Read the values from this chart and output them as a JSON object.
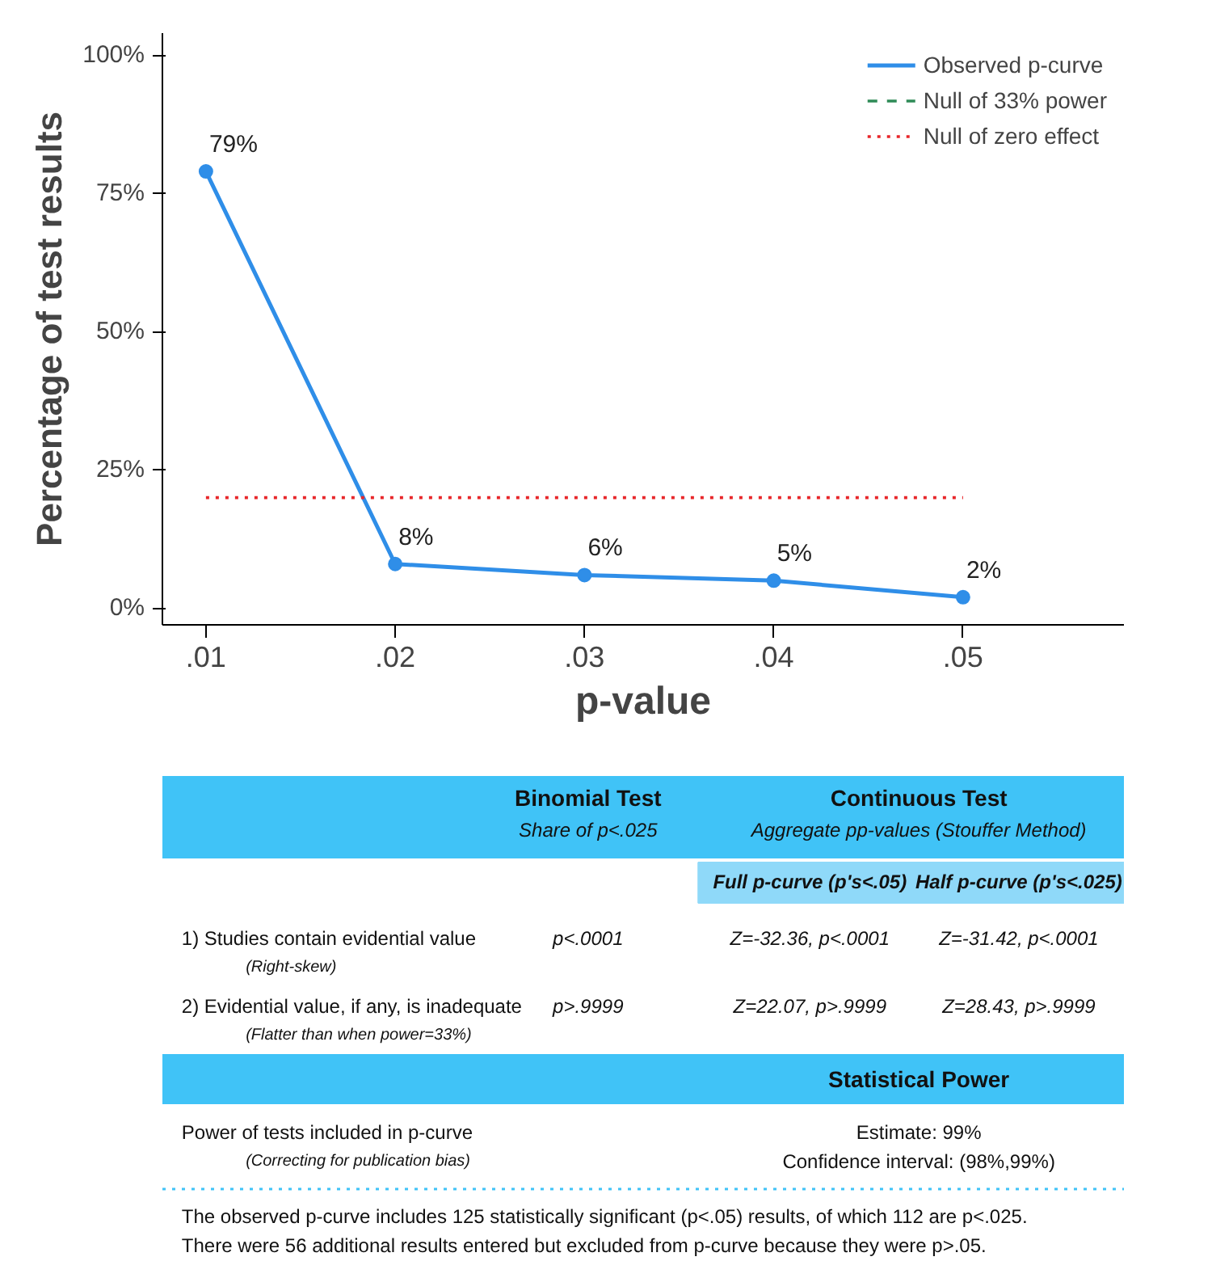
{
  "chart_data": {
    "type": "line",
    "xlabel": "p-value",
    "ylabel": "Percentage of test results",
    "x": [
      0.01,
      0.02,
      0.03,
      0.04,
      0.05
    ],
    "xlim": [
      0.0077,
      0.0585
    ],
    "ylim": [
      -3,
      104
    ],
    "xticks": [
      {
        "value": 0.01,
        "label": ".01"
      },
      {
        "value": 0.02,
        "label": ".02"
      },
      {
        "value": 0.03,
        "label": ".03"
      },
      {
        "value": 0.04,
        "label": ".04"
      },
      {
        "value": 0.05,
        "label": ".05"
      }
    ],
    "yticks": [
      {
        "value": 0,
        "label": "0%"
      },
      {
        "value": 25,
        "label": "25%"
      },
      {
        "value": 50,
        "label": "50%"
      },
      {
        "value": 75,
        "label": "75%"
      },
      {
        "value": 100,
        "label": "100%"
      }
    ],
    "grid": false,
    "legend": "top right",
    "series": [
      {
        "name": "Observed p-curve",
        "color": "#2f8ee8",
        "values": [
          79,
          8,
          6,
          5,
          2
        ],
        "marker": "circle",
        "line_style": "solid",
        "value_labels": [
          "79%",
          "8%",
          "6%",
          "5%",
          "2%"
        ]
      },
      {
        "name": "Null of 33% power",
        "color": "#2e8b57",
        "values": [
          null,
          null,
          null,
          null,
          null
        ],
        "line_style": "dashed"
      },
      {
        "name": "Null of zero effect",
        "color": "#e8262a",
        "values": [
          20,
          20,
          20,
          20,
          20
        ],
        "line_style": "dotted"
      }
    ],
    "annotations": [
      "Binomial Test",
      "Share of p<.025",
      "Continuous Test",
      "Aggregate pp-values (Stouffer Method)",
      "Full p-curve (p's<.05)",
      "Half p-curve (p's<.025)",
      "1) Studies contain evidential value",
      "(Right-skew)",
      "p<.0001",
      "Z=-32.36, p<.0001",
      "Z=-31.42, p<.0001",
      "2) Evidential value, if any, is inadequate",
      "(Flatter than when power=33%)",
      "p>.9999",
      "Z=22.07, p>.9999",
      "Z=28.43, p>.9999",
      "Statistical Power",
      "Power of tests included in p-curve",
      "(Correcting for publication bias)",
      "Estimate: 99%",
      "Confidence interval: (98%,99%)",
      "The observed p-curve includes 125 statistically significant (p<.05) results, of which 112 are p<.025.",
      "There were 56 additional results entered but excluded from p-curve because they were p>.05."
    ]
  }
}
